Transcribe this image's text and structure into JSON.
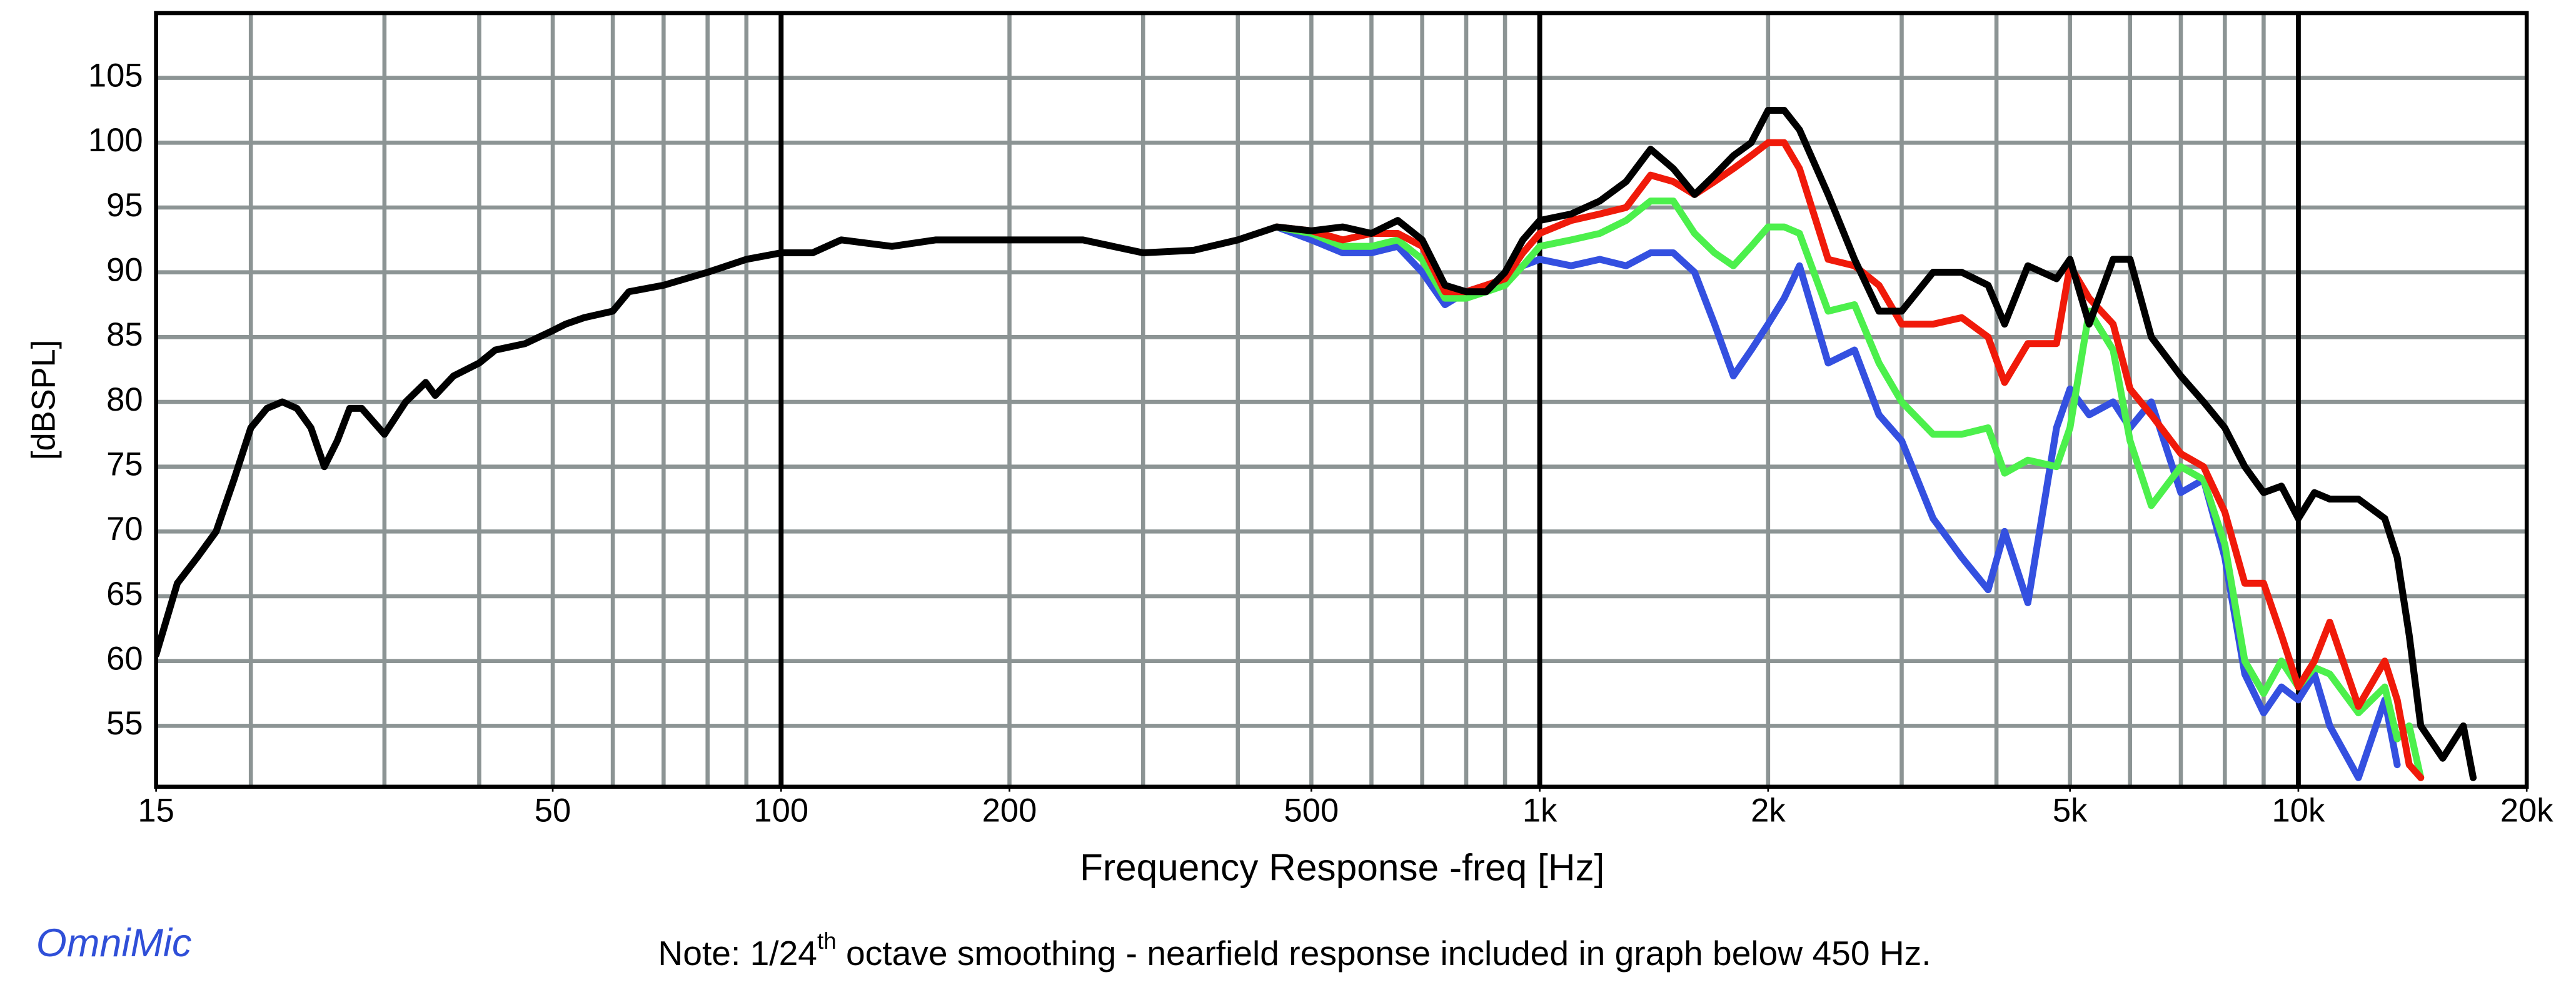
{
  "chart_data": {
    "type": "line",
    "xlabel": "Frequency Response -freq [Hz]",
    "ylabel": "[dBSPL]",
    "brand": "OmniMic",
    "note": {
      "before": "Note: 1/24",
      "sup": "th",
      "after": " octave smoothing - nearfield response included in graph below 450 Hz."
    },
    "xscale": "log",
    "xlim": [
      15,
      20000
    ],
    "ylim": [
      50.3,
      110
    ],
    "xticks": [
      15,
      50,
      100,
      200,
      500,
      {
        "value": 1000,
        "label": "1k"
      },
      {
        "value": 2000,
        "label": "2k"
      },
      {
        "value": 5000,
        "label": "5k"
      },
      {
        "value": 10000,
        "label": "10k"
      },
      {
        "value": 20000,
        "label": "20k"
      }
    ],
    "xgrid": [
      20,
      30,
      40,
      50,
      60,
      70,
      80,
      90,
      200,
      300,
      400,
      500,
      600,
      700,
      800,
      900,
      2000,
      3000,
      4000,
      5000,
      6000,
      7000,
      8000,
      9000
    ],
    "xgrid_major": [
      100,
      1000,
      10000
    ],
    "yticks": [
      55,
      60,
      65,
      70,
      75,
      80,
      85,
      90,
      95,
      100,
      105
    ],
    "grid": true,
    "x": [
      15,
      16,
      17,
      18,
      19,
      20,
      21,
      22,
      23,
      24,
      25,
      26,
      27,
      28,
      30,
      32,
      34,
      35,
      37,
      40,
      42,
      46,
      50,
      52,
      55,
      60,
      63,
      70,
      80,
      90,
      100,
      110,
      120,
      140,
      160,
      200,
      250,
      300,
      350,
      400,
      450,
      500,
      550,
      600,
      650,
      700,
      750,
      800,
      850,
      900,
      950,
      1000,
      1100,
      1200,
      1300,
      1400,
      1500,
      1600,
      1700,
      1800,
      1900,
      2000,
      2100,
      2200,
      2400,
      2600,
      2800,
      3000,
      3300,
      3600,
      3900,
      4100,
      4400,
      4800,
      5000,
      5300,
      5700,
      6000,
      6400,
      7000,
      7500,
      8000,
      8500,
      9000,
      9500,
      10000,
      10500,
      11000,
      12000,
      13000,
      13500,
      14000,
      14500,
      15500,
      16500,
      17000
    ],
    "series": [
      {
        "color": "#3450e0",
        "values": [
          null,
          null,
          null,
          null,
          null,
          null,
          null,
          null,
          null,
          null,
          null,
          null,
          null,
          null,
          null,
          null,
          null,
          null,
          null,
          null,
          null,
          null,
          null,
          null,
          null,
          null,
          null,
          null,
          null,
          null,
          null,
          null,
          null,
          null,
          null,
          null,
          null,
          null,
          null,
          null,
          93.5,
          92.5,
          91.5,
          91.5,
          92,
          90,
          87.5,
          88.5,
          89,
          89.5,
          90.5,
          91,
          90.5,
          91,
          90.5,
          91.5,
          91.5,
          90,
          86,
          82,
          84,
          86,
          88,
          90.5,
          83,
          84,
          79,
          77,
          71,
          68,
          65.5,
          70,
          64.5,
          78,
          81,
          79,
          80,
          78,
          80,
          73,
          74,
          68,
          59,
          56,
          58,
          57,
          59,
          55,
          51,
          57,
          52,
          null,
          null,
          null,
          null,
          null
        ]
      },
      {
        "color": "#4cf04c",
        "values": [
          null,
          null,
          null,
          null,
          null,
          null,
          null,
          null,
          null,
          null,
          null,
          null,
          null,
          null,
          null,
          null,
          null,
          null,
          null,
          null,
          null,
          null,
          null,
          null,
          null,
          null,
          null,
          null,
          null,
          null,
          null,
          null,
          null,
          null,
          null,
          null,
          null,
          null,
          null,
          null,
          93.5,
          93,
          92,
          92,
          92.5,
          91,
          88,
          88,
          88.5,
          89,
          90.5,
          92,
          92.5,
          93,
          94,
          95.5,
          95.5,
          93,
          91.5,
          90.5,
          92,
          93.5,
          93.5,
          93,
          87,
          87.5,
          83,
          80,
          77.5,
          77.5,
          78,
          74.5,
          75.5,
          75,
          78,
          87,
          84,
          77,
          72,
          75,
          74,
          69,
          60,
          57.5,
          60,
          58,
          59.5,
          59,
          56,
          58,
          54,
          55,
          51,
          null,
          null,
          null
        ]
      },
      {
        "color": "#f01a0a",
        "values": [
          null,
          null,
          null,
          null,
          null,
          null,
          null,
          null,
          null,
          null,
          null,
          null,
          null,
          null,
          null,
          null,
          null,
          null,
          null,
          null,
          null,
          null,
          null,
          null,
          null,
          null,
          null,
          null,
          null,
          null,
          null,
          null,
          null,
          null,
          null,
          null,
          null,
          null,
          null,
          null,
          93.5,
          93.2,
          92.5,
          93,
          93,
          92,
          88.5,
          88.5,
          89,
          89.5,
          91.5,
          93,
          94,
          94.5,
          95,
          97.5,
          97,
          96,
          97,
          98,
          99,
          100,
          100,
          98,
          91,
          90.5,
          89,
          86,
          86,
          86.5,
          85,
          81.5,
          84.5,
          84.5,
          90.5,
          88,
          86,
          81,
          79,
          76,
          75,
          71.5,
          66,
          66,
          62,
          58,
          60,
          63,
          56.5,
          60,
          57,
          52,
          51,
          null,
          null,
          null
        ]
      },
      {
        "color": "#000000",
        "values": [
          60.5,
          66,
          68,
          70,
          74,
          78,
          79.5,
          80,
          79.5,
          78,
          75,
          77,
          79.5,
          79.5,
          77.5,
          80,
          81.5,
          80.5,
          82,
          83,
          84,
          84.5,
          85.5,
          86,
          86.5,
          87,
          88.5,
          89,
          90,
          91,
          91.5,
          91.5,
          92.5,
          92,
          92.5,
          92.5,
          92.5,
          91.5,
          91.7,
          92.5,
          93.5,
          93.2,
          93.5,
          93,
          94,
          92.5,
          89,
          88.5,
          88.5,
          90,
          92.5,
          94,
          94.5,
          95.5,
          97,
          99.5,
          98,
          96,
          97.5,
          99,
          100,
          102.5,
          102.5,
          101,
          96,
          91,
          87,
          87,
          90,
          90,
          89,
          86,
          90.5,
          89.5,
          91,
          86,
          91,
          91,
          85,
          82,
          80,
          78,
          75,
          73,
          73.5,
          71,
          73,
          72.5,
          72.5,
          71,
          68,
          62,
          55,
          52.5,
          55,
          51
        ]
      }
    ]
  }
}
